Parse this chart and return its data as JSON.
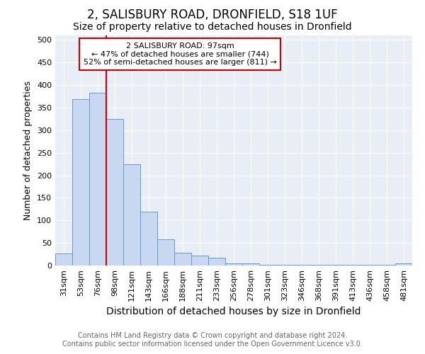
{
  "title1": "2, SALISBURY ROAD, DRONFIELD, S18 1UF",
  "title2": "Size of property relative to detached houses in Dronfield",
  "xlabel": "Distribution of detached houses by size in Dronfield",
  "ylabel": "Number of detached properties",
  "categories": [
    "31sqm",
    "53sqm",
    "76sqm",
    "98sqm",
    "121sqm",
    "143sqm",
    "166sqm",
    "188sqm",
    "211sqm",
    "233sqm",
    "256sqm",
    "278sqm",
    "301sqm",
    "323sqm",
    "346sqm",
    "368sqm",
    "391sqm",
    "413sqm",
    "436sqm",
    "458sqm",
    "481sqm"
  ],
  "values": [
    27,
    368,
    383,
    325,
    225,
    120,
    58,
    28,
    22,
    17,
    5,
    5,
    2,
    2,
    2,
    2,
    2,
    2,
    2,
    2,
    5
  ],
  "bar_color": "#c8d8f0",
  "bar_edge_color": "#6699cc",
  "red_line_x": 2.5,
  "red_line_color": "#cc0000",
  "annotation_text": "2 SALISBURY ROAD: 97sqm\n← 47% of detached houses are smaller (744)\n52% of semi-detached houses are larger (811) →",
  "annotation_box_color": "#ffffff",
  "annotation_box_edge": "#cc0000",
  "ylim": [
    0,
    510
  ],
  "yticks": [
    0,
    50,
    100,
    150,
    200,
    250,
    300,
    350,
    400,
    450,
    500
  ],
  "footer1": "Contains HM Land Registry data © Crown copyright and database right 2024.",
  "footer2": "Contains public sector information licensed under the Open Government Licence v3.0.",
  "bg_color": "#ffffff",
  "plot_bg_color": "#e8eef8",
  "title1_fontsize": 12,
  "title2_fontsize": 10,
  "xlabel_fontsize": 10,
  "ylabel_fontsize": 9,
  "tick_fontsize": 8,
  "footer_fontsize": 7,
  "annotation_fontsize": 8
}
